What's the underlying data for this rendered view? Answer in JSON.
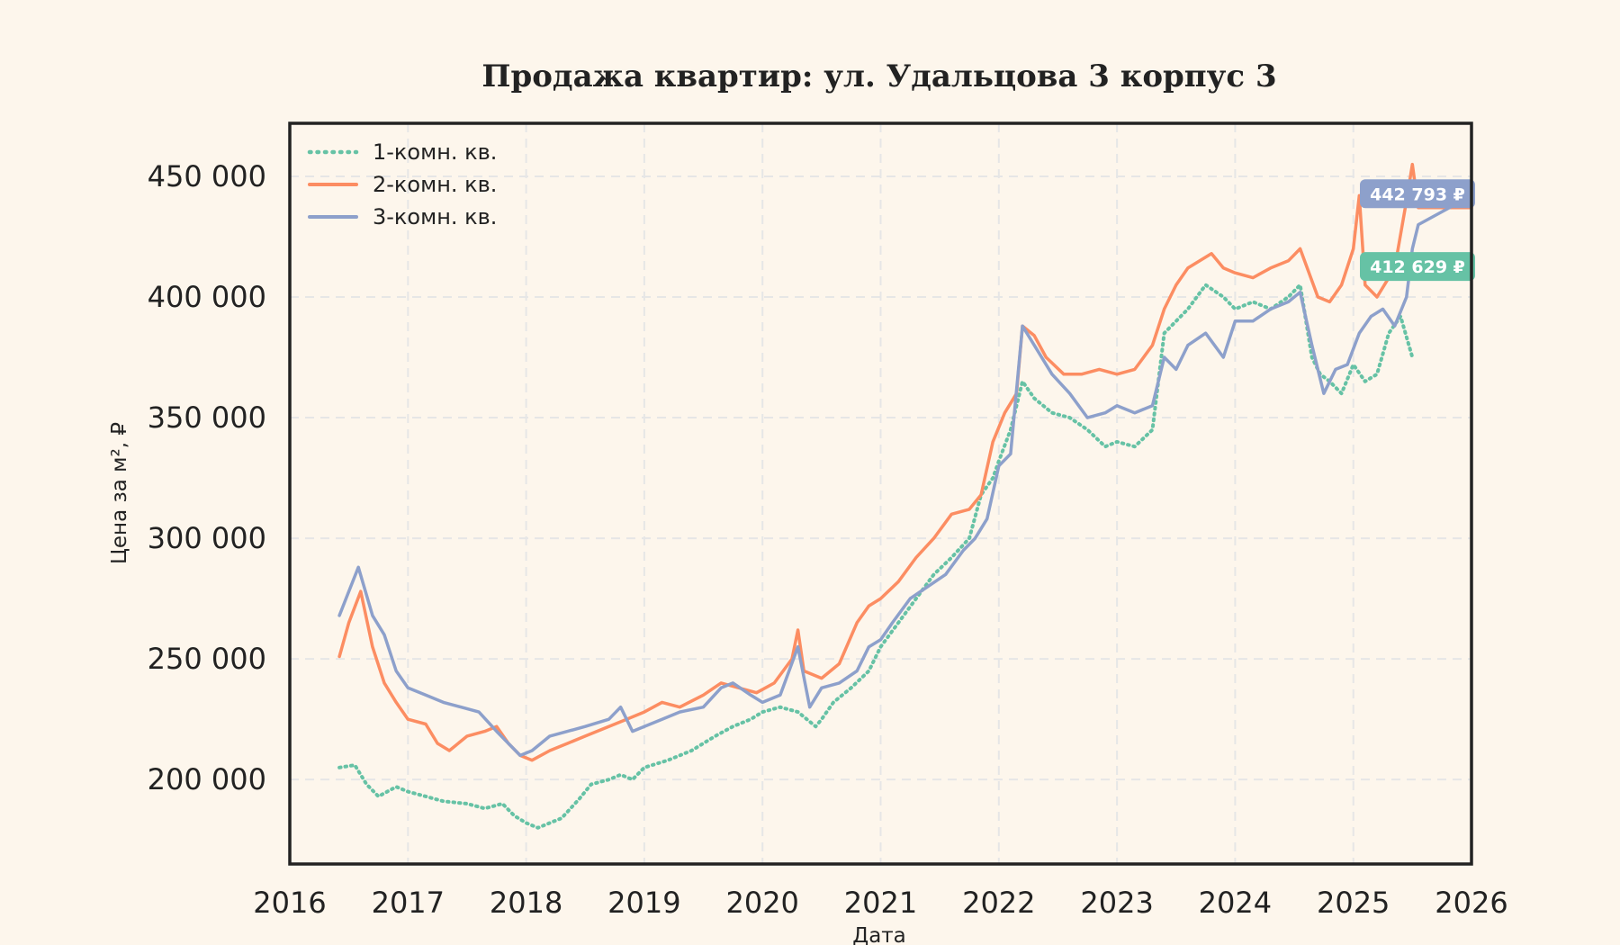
{
  "chart_data": {
    "type": "line",
    "title": "Продажа квартир: ул. Удальцова 3 корпус 3",
    "xlabel": "Дата",
    "ylabel": "Цена за м², ₽",
    "xlim": [
      2016,
      2026
    ],
    "ylim": [
      165000,
      472000
    ],
    "x_ticks": [
      "2016",
      "2017",
      "2018",
      "2019",
      "2020",
      "2021",
      "2022",
      "2023",
      "2024",
      "2025",
      "2026"
    ],
    "y_ticks": [
      "200 000",
      "250 000",
      "300 000",
      "350 000",
      "400 000",
      "450 000"
    ],
    "grid": true,
    "legend_position": "top-left",
    "series": [
      {
        "name": "1-комн. кв.",
        "color": "#66c2a5",
        "style": "dotted",
        "x": [
          2016.42,
          2016.55,
          2016.65,
          2016.75,
          2016.9,
          2017.0,
          2017.15,
          2017.3,
          2017.5,
          2017.65,
          2017.8,
          2017.9,
          2018.0,
          2018.1,
          2018.2,
          2018.3,
          2018.45,
          2018.55,
          2018.7,
          2018.8,
          2018.9,
          2019.0,
          2019.2,
          2019.4,
          2019.6,
          2019.75,
          2019.9,
          2020.0,
          2020.15,
          2020.3,
          2020.45,
          2020.5,
          2020.6,
          2020.75,
          2020.9,
          2021.0,
          2021.15,
          2021.3,
          2021.45,
          2021.6,
          2021.75,
          2021.85,
          2021.95,
          2022.0,
          2022.1,
          2022.2,
          2022.3,
          2022.45,
          2022.6,
          2022.75,
          2022.9,
          2023.0,
          2023.15,
          2023.3,
          2023.4,
          2023.5,
          2023.6,
          2023.75,
          2023.9,
          2024.0,
          2024.15,
          2024.3,
          2024.45,
          2024.55,
          2024.65,
          2024.72,
          2024.8,
          2024.9,
          2025.0,
          2025.1,
          2025.2,
          2025.3,
          2025.4,
          2025.5
        ],
        "y": [
          205000,
          206000,
          198000,
          193000,
          197000,
          195000,
          193000,
          191000,
          190000,
          188000,
          190000,
          185000,
          182000,
          180000,
          182000,
          184000,
          192000,
          198000,
          200000,
          202000,
          200000,
          205000,
          208000,
          212000,
          218000,
          222000,
          225000,
          228000,
          230000,
          228000,
          222000,
          225000,
          232000,
          238000,
          245000,
          255000,
          265000,
          275000,
          285000,
          292000,
          300000,
          318000,
          325000,
          332000,
          345000,
          365000,
          358000,
          352000,
          350000,
          345000,
          338000,
          340000,
          338000,
          345000,
          385000,
          390000,
          395000,
          405000,
          400000,
          395000,
          398000,
          395000,
          400000,
          405000,
          375000,
          368000,
          365000,
          360000,
          372000,
          365000,
          368000,
          385000,
          392000,
          375000
        ]
      },
      {
        "name": "2-комн. кв.",
        "color": "#fc8d62",
        "style": "solid",
        "x": [
          2016.42,
          2016.5,
          2016.6,
          2016.7,
          2016.8,
          2016.9,
          2017.0,
          2017.15,
          2017.25,
          2017.35,
          2017.5,
          2017.65,
          2017.75,
          2017.85,
          2017.95,
          2018.05,
          2018.2,
          2018.35,
          2018.5,
          2018.7,
          2018.85,
          2019.0,
          2019.15,
          2019.3,
          2019.5,
          2019.65,
          2019.8,
          2019.95,
          2020.1,
          2020.25,
          2020.3,
          2020.35,
          2020.5,
          2020.65,
          2020.8,
          2020.9,
          2021.0,
          2021.15,
          2021.3,
          2021.45,
          2021.6,
          2021.75,
          2021.85,
          2021.95,
          2022.05,
          2022.15,
          2022.2,
          2022.3,
          2022.4,
          2022.55,
          2022.7,
          2022.85,
          2023.0,
          2023.15,
          2023.3,
          2023.4,
          2023.5,
          2023.6,
          2023.7,
          2023.8,
          2023.9,
          2024.0,
          2024.15,
          2024.3,
          2024.45,
          2024.55,
          2024.7,
          2024.8,
          2024.9,
          2025.0,
          2025.05,
          2025.1,
          2025.2,
          2025.35,
          2025.45,
          2025.5,
          2025.55,
          2026.0
        ],
        "y": [
          251000,
          265000,
          278000,
          255000,
          240000,
          232000,
          225000,
          223000,
          215000,
          212000,
          218000,
          220000,
          222000,
          215000,
          210000,
          208000,
          212000,
          215000,
          218000,
          222000,
          225000,
          228000,
          232000,
          230000,
          235000,
          240000,
          238000,
          236000,
          240000,
          250000,
          262000,
          245000,
          242000,
          248000,
          265000,
          272000,
          275000,
          282000,
          292000,
          300000,
          310000,
          312000,
          318000,
          340000,
          352000,
          360000,
          388000,
          384000,
          375000,
          368000,
          368000,
          370000,
          368000,
          370000,
          380000,
          395000,
          405000,
          412000,
          415000,
          418000,
          412000,
          410000,
          408000,
          412000,
          415000,
          420000,
          400000,
          398000,
          405000,
          420000,
          442000,
          405000,
          400000,
          412000,
          440000,
          455000,
          437000,
          437000
        ]
      },
      {
        "name": "3-комн. кв.",
        "color": "#8da0cb",
        "style": "solid",
        "x": [
          2016.42,
          2016.5,
          2016.58,
          2016.7,
          2016.8,
          2016.9,
          2017.0,
          2017.15,
          2017.3,
          2017.45,
          2017.6,
          2017.75,
          2017.85,
          2017.95,
          2018.05,
          2018.2,
          2018.35,
          2018.5,
          2018.7,
          2018.8,
          2018.9,
          2019.0,
          2019.15,
          2019.3,
          2019.5,
          2019.65,
          2019.75,
          2019.9,
          2020.0,
          2020.15,
          2020.3,
          2020.4,
          2020.5,
          2020.65,
          2020.8,
          2020.9,
          2021.0,
          2021.1,
          2021.25,
          2021.4,
          2021.55,
          2021.7,
          2021.8,
          2021.9,
          2022.0,
          2022.1,
          2022.2,
          2022.3,
          2022.45,
          2022.6,
          2022.75,
          2022.9,
          2023.0,
          2023.15,
          2023.3,
          2023.4,
          2023.5,
          2023.6,
          2023.75,
          2023.9,
          2024.0,
          2024.15,
          2024.3,
          2024.45,
          2024.55,
          2024.65,
          2024.75,
          2024.85,
          2024.95,
          2025.05,
          2025.15,
          2025.25,
          2025.35,
          2025.45,
          2025.5,
          2025.55,
          2026.0
        ],
        "y": [
          268000,
          278000,
          288000,
          268000,
          260000,
          245000,
          238000,
          235000,
          232000,
          230000,
          228000,
          220000,
          215000,
          210000,
          212000,
          218000,
          220000,
          222000,
          225000,
          230000,
          220000,
          222000,
          225000,
          228000,
          230000,
          238000,
          240000,
          235000,
          232000,
          235000,
          255000,
          230000,
          238000,
          240000,
          245000,
          255000,
          258000,
          265000,
          275000,
          280000,
          285000,
          295000,
          300000,
          308000,
          330000,
          335000,
          388000,
          380000,
          368000,
          360000,
          350000,
          352000,
          355000,
          352000,
          355000,
          375000,
          370000,
          380000,
          385000,
          375000,
          390000,
          390000,
          395000,
          398000,
          402000,
          380000,
          360000,
          370000,
          372000,
          385000,
          392000,
          395000,
          388000,
          400000,
          420000,
          430000,
          442000
        ]
      }
    ],
    "annotations": [
      {
        "text": "442 793 ₽",
        "y": 442793,
        "color": "#8da0cb"
      },
      {
        "text": "412 629 ₽",
        "y": 412629,
        "color": "#66c2a5"
      }
    ]
  }
}
